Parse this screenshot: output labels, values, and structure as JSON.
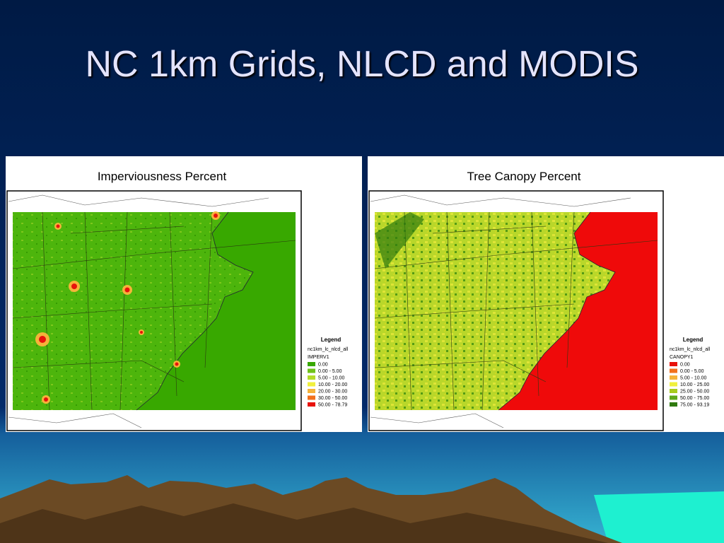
{
  "title": "NC 1km Grids, NLCD and MODIS",
  "maps": [
    {
      "title": "Imperviousness Percent",
      "legend": {
        "title": "Legend",
        "layer": "nc1km_lc_nlcd_all",
        "field": "IMPERV1",
        "items": [
          {
            "label": "0.00",
            "color": "#38a800"
          },
          {
            "label": "0.00 - 5.00",
            "color": "#6fc21a"
          },
          {
            "label": "5.00 - 10.00",
            "color": "#b4dc2a"
          },
          {
            "label": "10.00 - 20.00",
            "color": "#f0f03c"
          },
          {
            "label": "20.00 - 30.00",
            "color": "#f5b33a"
          },
          {
            "label": "30.00 - 50.00",
            "color": "#f2701c"
          },
          {
            "label": "50.00 - 78.79",
            "color": "#e8120c"
          }
        ]
      }
    },
    {
      "title": "Tree Canopy Percent",
      "legend": {
        "title": "Legend",
        "layer": "nc1km_lc_nlcd_all",
        "field": "CANOPY1",
        "items": [
          {
            "label": "0.00",
            "color": "#e8120c"
          },
          {
            "label": "0.00 - 5.00",
            "color": "#f2701c"
          },
          {
            "label": "5.00 - 10.00",
            "color": "#f5b33a"
          },
          {
            "label": "10.00 - 25.00",
            "color": "#f0f03c"
          },
          {
            "label": "25.00 - 50.00",
            "color": "#a8cc1c"
          },
          {
            "label": "50.00 - 75.00",
            "color": "#5fa81a"
          },
          {
            "label": "75.00 - 93.19",
            "color": "#2f7a0e"
          }
        ]
      }
    }
  ]
}
